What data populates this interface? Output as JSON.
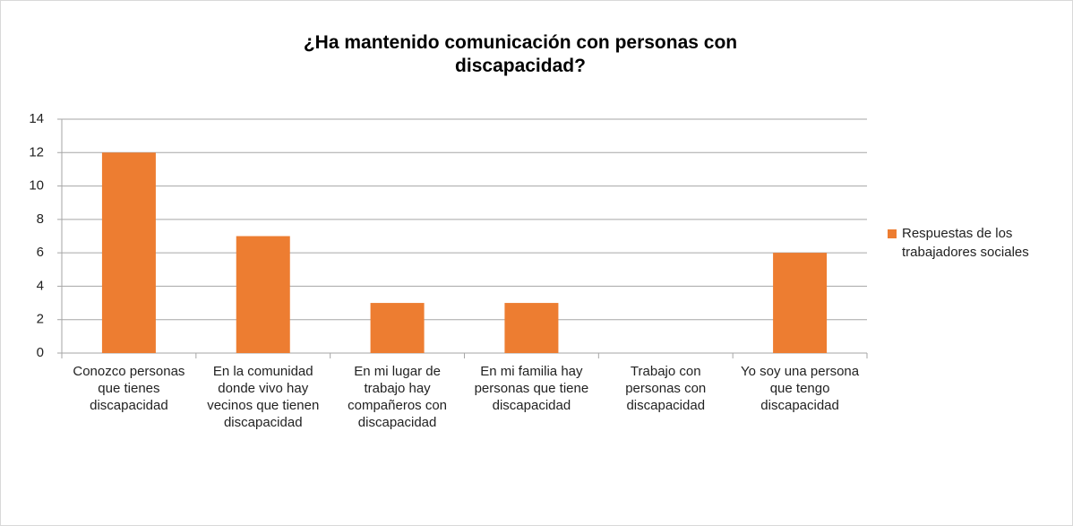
{
  "chart_data": {
    "type": "bar",
    "title": "¿Ha mantenido comunicación con personas con discapacidad?",
    "categories": [
      "Conozco personas que tienes discapacidad",
      "En la comunidad donde vivo hay vecinos que tienen discapacidad",
      "En mi lugar de trabajo hay compañeros con discapacidad",
      "En mi familia hay personas que tiene discapacidad",
      "Trabajo con personas con discapacidad",
      "Yo soy una persona que tengo discapacidad"
    ],
    "series": [
      {
        "name": "Respuestas de los trabajadores sociales",
        "color": "#ed7d31",
        "values": [
          12,
          7,
          3,
          3,
          0,
          6
        ]
      }
    ],
    "ylim": [
      0,
      14
    ],
    "yticks": [
      0,
      2,
      4,
      6,
      8,
      10,
      12,
      14
    ],
    "grid": true,
    "legend": "right"
  }
}
